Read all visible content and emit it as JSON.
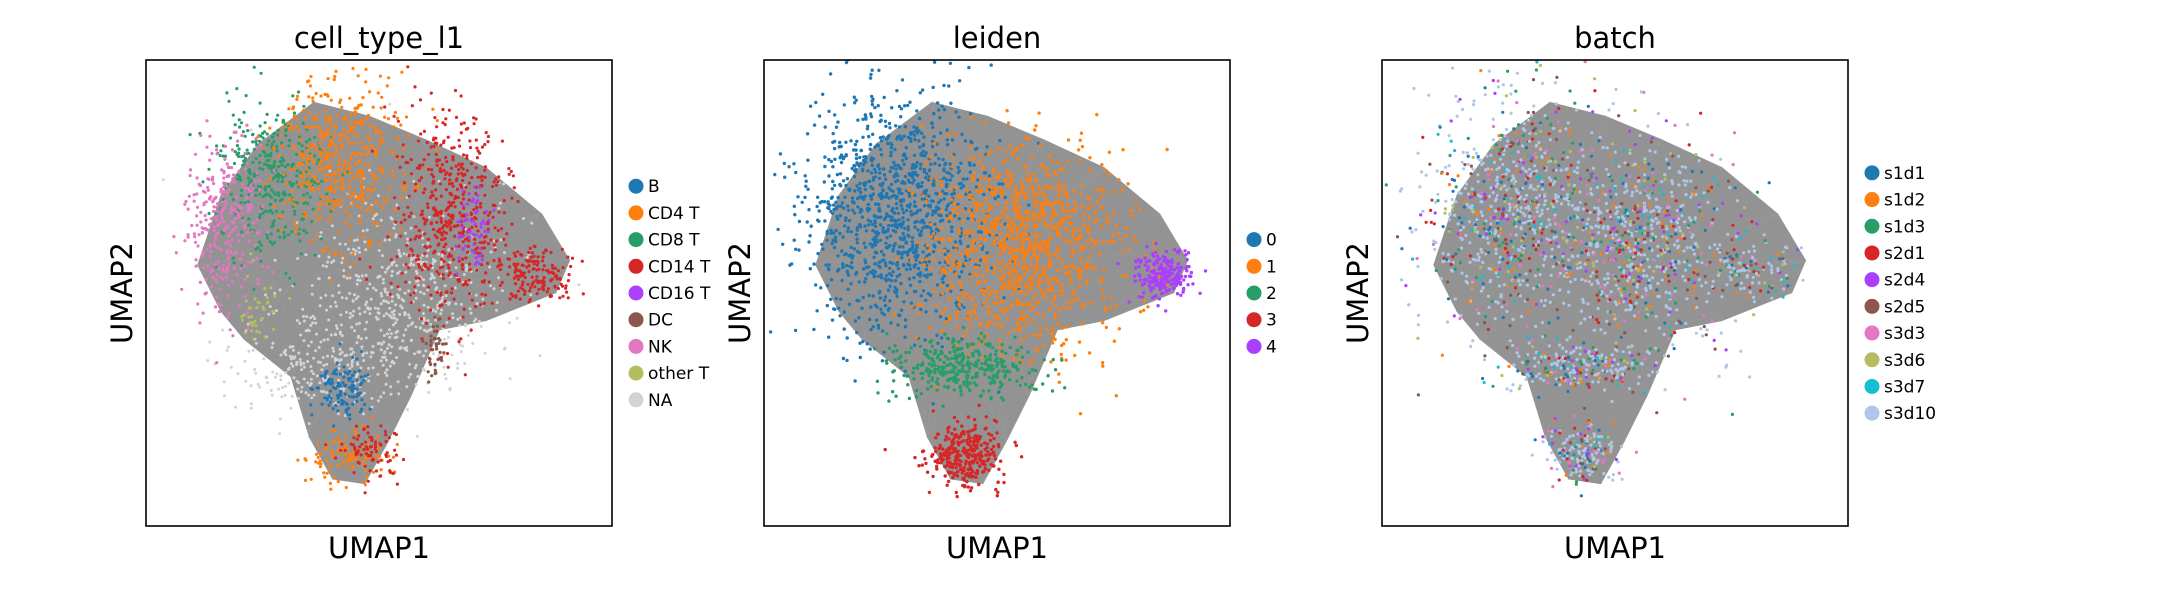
{
  "chart_data": [
    {
      "type": "scatter",
      "title": "cell_type_l1",
      "xlabel": "UMAP1",
      "ylabel": "UMAP2",
      "grid": false,
      "ticks": false,
      "legend_position": "right",
      "categories": [
        {
          "name": "B",
          "color": "#1f77b4"
        },
        {
          "name": "CD4 T",
          "color": "#ff7f0e"
        },
        {
          "name": "CD8 T",
          "color": "#279e68"
        },
        {
          "name": "CD14 T",
          "color": "#d62728"
        },
        {
          "name": "CD16 T",
          "color": "#aa40fc"
        },
        {
          "name": "DC",
          "color": "#8c564b"
        },
        {
          "name": "NK",
          "color": "#e377c2"
        },
        {
          "name": "other T",
          "color": "#b5bd61"
        },
        {
          "name": "NA",
          "color": "#d3d3d3"
        }
      ]
    },
    {
      "type": "scatter",
      "title": "leiden",
      "xlabel": "UMAP1",
      "ylabel": "UMAP2",
      "grid": false,
      "ticks": false,
      "legend_position": "right",
      "categories": [
        {
          "name": "0",
          "color": "#1f77b4"
        },
        {
          "name": "1",
          "color": "#ff7f0e"
        },
        {
          "name": "2",
          "color": "#279e68"
        },
        {
          "name": "3",
          "color": "#d62728"
        },
        {
          "name": "4",
          "color": "#aa40fc"
        }
      ]
    },
    {
      "type": "scatter",
      "title": "batch",
      "xlabel": "UMAP1",
      "ylabel": "UMAP2",
      "grid": false,
      "ticks": false,
      "legend_position": "right",
      "categories": [
        {
          "name": "s1d1",
          "color": "#1f77b4"
        },
        {
          "name": "s1d2",
          "color": "#ff7f0e"
        },
        {
          "name": "s1d3",
          "color": "#279e68"
        },
        {
          "name": "s2d1",
          "color": "#d62728"
        },
        {
          "name": "s2d4",
          "color": "#aa40fc"
        },
        {
          "name": "s2d5",
          "color": "#8c564b"
        },
        {
          "name": "s3d3",
          "color": "#e377c2"
        },
        {
          "name": "s3d6",
          "color": "#b5bd61"
        },
        {
          "name": "s3d7",
          "color": "#17becf"
        },
        {
          "name": "s3d10",
          "color": "#aec7e8"
        }
      ]
    }
  ],
  "colors": {
    "edges": "#808080",
    "frame": "#000000",
    "background": "#ffffff"
  }
}
